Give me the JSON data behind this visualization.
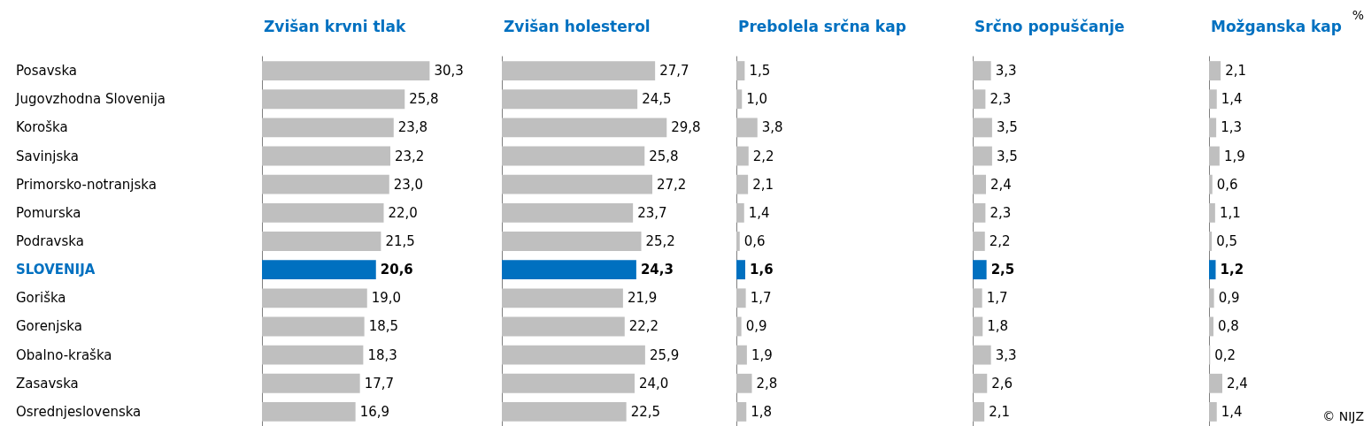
{
  "chart_data": [
    {
      "type": "bar",
      "orientation": "horizontal",
      "title": "Zvišan krvni tlak",
      "tick_labels": "y",
      "categories": [
        "Posavska",
        "Jugovzhodna Slovenija",
        "Koroška",
        "Savinjska",
        "Primorsko-notranjska",
        "Pomurska",
        "Podravska",
        "SLOVENIJA",
        "Goriška",
        "Gorenjska",
        "Obalno-kraška",
        "Zasavska",
        "Osrednjeslovenska"
      ],
      "values": [
        30.3,
        25.8,
        23.8,
        23.2,
        23.0,
        22.0,
        21.5,
        20.6,
        19.0,
        18.5,
        18.3,
        17.7,
        16.9
      ],
      "value_labels": [
        "30,3",
        "25,8",
        "23,8",
        "23,2",
        "23,0",
        "22,0",
        "21,5",
        "20,6",
        "19,0",
        "18,5",
        "18,3",
        "17,7",
        "16,9"
      ],
      "colors": [
        "#bfbfbf",
        "#bfbfbf",
        "#bfbfbf",
        "#bfbfbf",
        "#bfbfbf",
        "#bfbfbf",
        "#bfbfbf",
        "#0070c0",
        "#bfbfbf",
        "#bfbfbf",
        "#bfbfbf",
        "#bfbfbf",
        "#bfbfbf"
      ]
    },
    {
      "type": "bar",
      "orientation": "horizontal",
      "title": "Zvišan holesterol",
      "tick_labels": false,
      "categories": [
        null,
        null,
        null,
        null,
        null,
        null,
        null,
        null,
        null,
        null,
        null,
        null,
        null
      ],
      "values": [
        27.7,
        24.5,
        29.8,
        25.8,
        27.2,
        23.7,
        25.2,
        24.3,
        21.9,
        22.2,
        25.9,
        24.0,
        22.5
      ],
      "value_labels": [
        "27,7",
        "24,5",
        "29,8",
        "25,8",
        "27,2",
        "23,7",
        "25,2",
        "24,3",
        "21,9",
        "22,2",
        "25,9",
        "24,0",
        "22,5"
      ],
      "colors": [
        "#bfbfbf",
        "#bfbfbf",
        "#bfbfbf",
        "#bfbfbf",
        "#bfbfbf",
        "#bfbfbf",
        "#bfbfbf",
        "#0070c0",
        "#bfbfbf",
        "#bfbfbf",
        "#bfbfbf",
        "#bfbfbf",
        "#bfbfbf"
      ]
    },
    {
      "type": "bar",
      "orientation": "horizontal",
      "title": "Prebolela srčna kap",
      "tick_labels": false,
      "categories": [
        null,
        null,
        null,
        null,
        null,
        null,
        null,
        null,
        null,
        null,
        null,
        null,
        null
      ],
      "values": [
        1.5,
        1.0,
        3.8,
        2.2,
        2.1,
        1.4,
        0.6,
        1.6,
        1.7,
        0.9,
        1.9,
        2.8,
        1.8
      ],
      "value_labels": [
        "1,5",
        "1,0",
        "3,8",
        "2,2",
        "2,1",
        "1,4",
        "0,6",
        "1,6",
        "1,7",
        "0,9",
        "1,9",
        "2,8",
        "1,8"
      ],
      "colors": [
        "#bfbfbf",
        "#bfbfbf",
        "#bfbfbf",
        "#bfbfbf",
        "#bfbfbf",
        "#bfbfbf",
        "#bfbfbf",
        "#0070c0",
        "#bfbfbf",
        "#bfbfbf",
        "#bfbfbf",
        "#bfbfbf",
        "#bfbfbf"
      ]
    },
    {
      "type": "bar",
      "orientation": "horizontal",
      "title": "Srčno popuščanje",
      "tick_labels": false,
      "categories": [
        null,
        null,
        null,
        null,
        null,
        null,
        null,
        null,
        null,
        null,
        null,
        null,
        null
      ],
      "values": [
        3.3,
        2.3,
        3.5,
        3.5,
        2.4,
        2.3,
        2.2,
        2.5,
        1.7,
        1.8,
        3.3,
        2.6,
        2.1
      ],
      "value_labels": [
        "3,3",
        "2,3",
        "3,5",
        "3,5",
        "2,4",
        "2,3",
        "2,2",
        "2,5",
        "1,7",
        "1,8",
        "3,3",
        "2,6",
        "2,1"
      ],
      "colors": [
        "#bfbfbf",
        "#bfbfbf",
        "#bfbfbf",
        "#bfbfbf",
        "#bfbfbf",
        "#bfbfbf",
        "#bfbfbf",
        "#0070c0",
        "#bfbfbf",
        "#bfbfbf",
        "#bfbfbf",
        "#bfbfbf",
        "#bfbfbf"
      ]
    },
    {
      "type": "bar",
      "orientation": "horizontal",
      "title": "Možganska kap",
      "tick_labels": false,
      "annotations": [
        "%",
        "© NIJZ"
      ],
      "categories": [
        null,
        null,
        null,
        null,
        null,
        null,
        null,
        null,
        null,
        null,
        null,
        null,
        null
      ],
      "values": [
        2.1,
        1.4,
        1.3,
        1.9,
        0.6,
        1.1,
        0.5,
        1.2,
        0.9,
        0.8,
        0.2,
        2.4,
        1.4
      ],
      "value_labels": [
        "2,1",
        "1,4",
        "1,3",
        "1,9",
        "0,6",
        "1,1",
        "0,5",
        "1,2",
        "0,9",
        "0,8",
        "0,2",
        "2,4",
        "1,4"
      ],
      "colors": [
        "#bfbfbf",
        "#bfbfbf",
        "#bfbfbf",
        "#bfbfbf",
        "#bfbfbf",
        "#bfbfbf",
        "#bfbfbf",
        "#0070c0",
        "#bfbfbf",
        "#bfbfbf",
        "#bfbfbf",
        "#bfbfbf",
        "#bfbfbf"
      ]
    }
  ]
}
